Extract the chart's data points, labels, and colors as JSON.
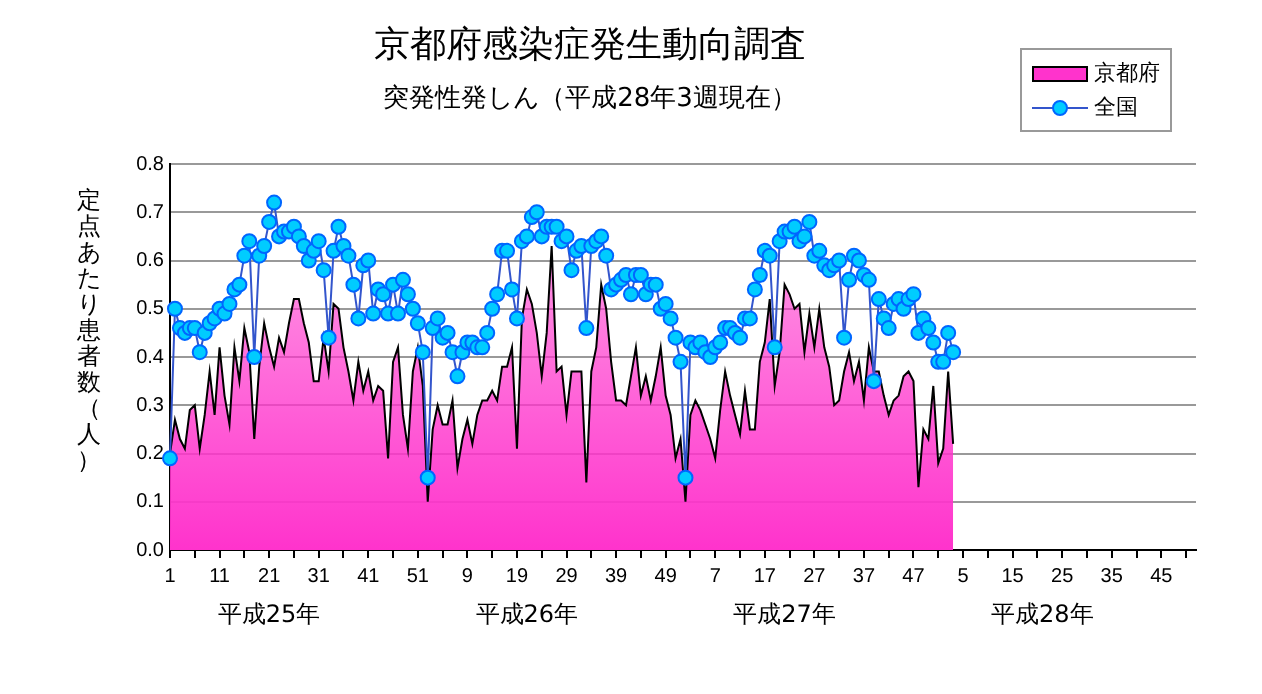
{
  "chart_data": {
    "type": "line",
    "title": "京都府感染症発生動向調査",
    "subtitle": "突発性発しん（平成28年3週現在）",
    "ylabel": "定点あたり患者数（人）",
    "annotations": [
      "平成25年",
      "平成26年",
      "平成27年",
      "平成28年"
    ],
    "categories": [
      "1",
      null,
      null,
      null,
      null,
      null,
      null,
      null,
      null,
      null,
      "11",
      null,
      null,
      null,
      null,
      null,
      null,
      null,
      null,
      null,
      "21",
      null,
      null,
      null,
      null,
      null,
      null,
      null,
      null,
      null,
      "31",
      null,
      null,
      null,
      null,
      null,
      null,
      null,
      null,
      null,
      "41",
      null,
      null,
      null,
      null,
      null,
      null,
      null,
      null,
      null,
      "51",
      null,
      null,
      null,
      null,
      null,
      null,
      null,
      null,
      null,
      "9",
      null,
      null,
      null,
      null,
      null,
      null,
      null,
      null,
      null,
      "19",
      null,
      null,
      null,
      null,
      null,
      null,
      null,
      null,
      null,
      "29",
      null,
      null,
      null,
      null,
      null,
      null,
      null,
      null,
      null,
      "39",
      null,
      null,
      null,
      null,
      null,
      null,
      null,
      null,
      null,
      "49",
      null,
      null,
      null,
      null,
      null,
      null,
      null,
      null,
      null,
      "7",
      null,
      null,
      null,
      null,
      null,
      null,
      null,
      null,
      null,
      "17",
      null,
      null,
      null,
      null,
      null,
      null,
      null,
      null,
      null,
      "27",
      null,
      null,
      null,
      null,
      null,
      null,
      null,
      null,
      null,
      "37",
      null,
      null,
      null,
      null,
      null,
      null,
      null,
      null,
      null,
      "47",
      null,
      null,
      null,
      null,
      null,
      null,
      null,
      null,
      null,
      "5",
      null,
      null,
      null,
      null,
      null,
      null,
      null,
      null,
      null,
      "15",
      null,
      null,
      null,
      null,
      null,
      null,
      null,
      null,
      null,
      "25",
      null,
      null,
      null,
      null,
      null,
      null,
      null,
      null,
      null,
      "35",
      null,
      null,
      null,
      null,
      null,
      null,
      null,
      null,
      null,
      "45",
      null,
      null,
      null,
      null,
      null,
      null,
      null
    ],
    "series": [
      {
        "name": "京都府",
        "type": "area",
        "marker": "none",
        "color": "#ff33cc",
        "values": [
          0.2,
          0.27,
          0.23,
          0.21,
          0.29,
          0.3,
          0.21,
          0.28,
          0.37,
          0.28,
          0.42,
          0.32,
          0.26,
          0.42,
          0.35,
          0.46,
          0.41,
          0.23,
          0.38,
          0.47,
          0.42,
          0.38,
          0.44,
          0.41,
          0.47,
          0.52,
          0.52,
          0.47,
          0.43,
          0.35,
          0.35,
          0.44,
          0.37,
          0.51,
          0.5,
          0.42,
          0.37,
          0.31,
          0.39,
          0.33,
          0.37,
          0.31,
          0.34,
          0.33,
          0.19,
          0.39,
          0.42,
          0.28,
          0.21,
          0.37,
          0.42,
          0.34,
          0.1,
          0.25,
          0.3,
          0.26,
          0.26,
          0.31,
          0.17,
          0.23,
          0.27,
          0.22,
          0.28,
          0.31,
          0.31,
          0.33,
          0.31,
          0.38,
          0.38,
          0.42,
          0.21,
          0.48,
          0.54,
          0.51,
          0.45,
          0.36,
          0.45,
          0.63,
          0.37,
          0.38,
          0.28,
          0.37,
          0.37,
          0.37,
          0.14,
          0.37,
          0.42,
          0.55,
          0.5,
          0.39,
          0.31,
          0.31,
          0.3,
          0.36,
          0.42,
          0.32,
          0.36,
          0.31,
          0.36,
          0.42,
          0.32,
          0.28,
          0.19,
          0.23,
          0.1,
          0.28,
          0.31,
          0.29,
          0.26,
          0.23,
          0.19,
          0.29,
          0.37,
          0.32,
          0.28,
          0.24,
          0.33,
          0.25,
          0.25,
          0.39,
          0.43,
          0.52,
          0.34,
          0.41,
          0.55,
          0.53,
          0.5,
          0.51,
          0.41,
          0.49,
          0.42,
          0.5,
          0.42,
          0.38,
          0.3,
          0.31,
          0.37,
          0.41,
          0.35,
          0.39,
          0.31,
          0.42,
          0.37,
          0.37,
          0.32,
          0.28,
          0.31,
          0.32,
          0.36,
          0.37,
          0.35,
          0.13,
          0.25,
          0.23,
          0.34,
          0.18,
          0.21,
          0.37,
          0.22,
          null,
          null,
          null,
          null,
          null,
          null,
          null,
          null,
          null,
          null,
          null,
          null,
          null,
          null,
          null,
          null,
          null,
          null,
          null,
          null,
          null,
          null,
          null,
          null,
          null,
          null,
          null,
          null,
          null,
          null,
          null,
          null,
          null,
          null,
          null,
          null,
          null,
          null,
          null,
          null,
          null,
          null,
          null,
          null,
          null,
          null,
          null,
          null,
          null
        ]
      },
      {
        "name": "全国",
        "type": "line",
        "marker": "circle",
        "color": "#00ccff",
        "values": [
          0.19,
          0.5,
          0.46,
          0.45,
          0.46,
          0.46,
          0.41,
          0.45,
          0.47,
          0.48,
          0.5,
          0.49,
          0.51,
          0.54,
          0.55,
          0.61,
          0.64,
          0.4,
          0.61,
          0.63,
          0.68,
          0.72,
          0.65,
          0.66,
          0.66,
          0.67,
          0.65,
          0.63,
          0.6,
          0.62,
          0.64,
          0.58,
          0.44,
          0.62,
          0.67,
          0.63,
          0.61,
          0.55,
          0.48,
          0.59,
          0.6,
          0.49,
          0.54,
          0.53,
          0.49,
          0.55,
          0.49,
          0.56,
          0.53,
          0.5,
          0.47,
          0.41,
          0.15,
          0.46,
          0.48,
          0.44,
          0.45,
          0.41,
          0.36,
          0.41,
          0.43,
          0.43,
          0.42,
          0.42,
          0.45,
          0.5,
          0.53,
          0.62,
          0.62,
          0.54,
          0.48,
          0.64,
          0.65,
          0.69,
          0.7,
          0.65,
          0.67,
          0.67,
          0.67,
          0.64,
          0.65,
          0.58,
          0.62,
          0.63,
          0.46,
          0.63,
          0.64,
          0.65,
          0.61,
          0.54,
          0.55,
          0.56,
          0.57,
          0.53,
          0.57,
          0.57,
          0.53,
          0.55,
          0.55,
          0.5,
          0.51,
          0.48,
          0.44,
          0.39,
          0.15,
          0.43,
          0.42,
          0.43,
          0.41,
          0.4,
          0.42,
          0.43,
          0.46,
          0.46,
          0.45,
          0.44,
          0.48,
          0.48,
          0.54,
          0.57,
          0.62,
          0.61,
          0.42,
          0.64,
          0.66,
          0.66,
          0.67,
          0.64,
          0.65,
          0.68,
          0.61,
          0.62,
          0.59,
          0.58,
          0.59,
          0.6,
          0.44,
          0.56,
          0.61,
          0.6,
          0.57,
          0.56,
          0.35,
          0.52,
          0.48,
          0.46,
          0.51,
          0.52,
          0.5,
          0.52,
          0.53,
          0.45,
          0.48,
          0.46,
          0.43,
          0.39,
          0.39,
          0.45,
          0.41,
          null,
          null,
          null,
          null,
          null,
          null,
          null,
          null,
          null,
          null,
          null,
          null,
          null,
          null,
          null,
          null,
          null,
          null,
          null,
          null,
          null,
          null,
          null,
          null,
          null,
          null,
          null,
          null,
          null,
          null,
          null,
          null,
          null,
          null,
          null,
          null,
          null,
          null,
          null,
          null,
          null,
          null,
          null,
          null,
          null,
          null,
          null,
          null,
          null
        ]
      }
    ],
    "ylim": [
      0,
      0.8
    ],
    "yticks": [
      {
        "value": 0,
        "label": "0.0"
      },
      0.1,
      0.2,
      0.3,
      0.4,
      0.5,
      0.6,
      0.7,
      0.8
    ],
    "grid": "y",
    "legend": "top right"
  }
}
